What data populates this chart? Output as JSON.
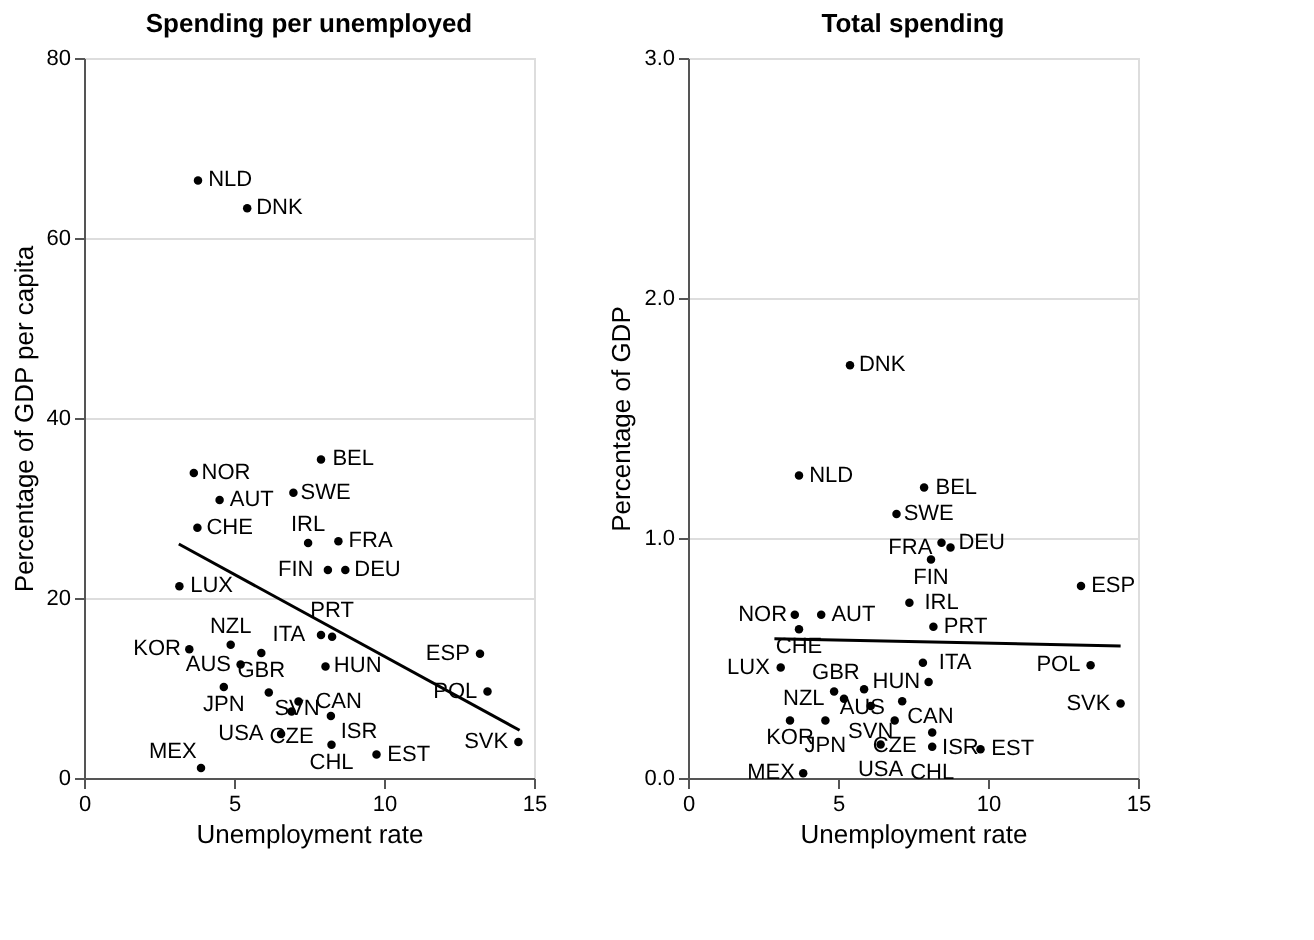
{
  "chart_data": [
    {
      "type": "scatter",
      "title": "Spending per unemployed",
      "xlabel": "Unemployment rate",
      "ylabel": "Percentage of GDP per capita",
      "xlim": [
        0,
        15
      ],
      "xticks": [
        0,
        5,
        10,
        15
      ],
      "ylim": [
        0,
        80
      ],
      "yticks": [
        0,
        20,
        40,
        60,
        80
      ],
      "grid": "y",
      "marker": "circle",
      "series": [
        {
          "color": "#000000",
          "x": [
            3.8,
            5.44,
            3.66,
            7.9,
            4.52,
            6.98,
            3.78,
            7.47,
            8.48,
            8.13,
            8.71,
            3.18,
            7.9,
            8.27,
            4.89,
            3.51,
            5.91,
            13.2,
            5.22,
            8.05,
            4.66,
            6.16,
            13.45,
            7.15,
            6.92,
            8.23,
            6.57,
            14.48,
            8.25,
            9.75,
            3.9
          ],
          "values": [
            66.4,
            63.3,
            33.9,
            35.4,
            30.9,
            31.7,
            27.8,
            26.1,
            26.3,
            23.1,
            23.1,
            21.3,
            15.9,
            15.7,
            14.8,
            14.3,
            13.9,
            13.8,
            12.6,
            12.4,
            10.1,
            9.5,
            9.6,
            8.5,
            7.4,
            6.9,
            4.9,
            4.0,
            3.7,
            2.6,
            1.1
          ]
        },
        {
          "type": "line",
          "color": "#000000",
          "marker": "none",
          "x": [
            3.16,
            14.52
          ],
          "values": [
            26.0,
            5.3
          ]
        }
      ],
      "annotations": [
        {
          "text": "NLD",
          "x": 3.8,
          "y": 66.4
        },
        {
          "text": "DNK",
          "x": 5.44,
          "y": 63.3
        },
        {
          "text": "NOR",
          "x": 3.66,
          "y": 33.9
        },
        {
          "text": "BEL",
          "x": 7.9,
          "y": 35.4
        },
        {
          "text": "AUT",
          "x": 4.52,
          "y": 30.9
        },
        {
          "text": "SWE",
          "x": 6.98,
          "y": 31.7
        },
        {
          "text": "CHE",
          "x": 3.78,
          "y": 27.8
        },
        {
          "text": "IRL",
          "x": 7.47,
          "y": 26.1
        },
        {
          "text": "FRA",
          "x": 8.48,
          "y": 26.3
        },
        {
          "text": "FIN",
          "x": 8.13,
          "y": 23.1
        },
        {
          "text": "DEU",
          "x": 8.71,
          "y": 23.1
        },
        {
          "text": "LUX",
          "x": 3.18,
          "y": 21.3
        },
        {
          "text": "ITA",
          "x": 7.9,
          "y": 15.9
        },
        {
          "text": "PRT",
          "x": 8.27,
          "y": 15.7
        },
        {
          "text": "NZL",
          "x": 4.89,
          "y": 14.8
        },
        {
          "text": "KOR",
          "x": 3.51,
          "y": 14.3
        },
        {
          "text": "GBR",
          "x": 5.91,
          "y": 13.9
        },
        {
          "text": "ESP",
          "x": 13.2,
          "y": 13.8
        },
        {
          "text": "AUS",
          "x": 5.22,
          "y": 12.6
        },
        {
          "text": "HUN",
          "x": 8.05,
          "y": 12.4
        },
        {
          "text": "JPN",
          "x": 4.66,
          "y": 10.1
        },
        {
          "text": "SVN",
          "x": 6.16,
          "y": 9.5
        },
        {
          "text": "POL",
          "x": 13.45,
          "y": 9.6
        },
        {
          "text": "CAN",
          "x": 7.15,
          "y": 8.5
        },
        {
          "text": "CZE",
          "x": 6.92,
          "y": 7.4
        },
        {
          "text": "ISR",
          "x": 8.23,
          "y": 6.9
        },
        {
          "text": "USA",
          "x": 6.57,
          "y": 4.9
        },
        {
          "text": "SVK",
          "x": 14.48,
          "y": 4.0
        },
        {
          "text": "CHL",
          "x": 8.25,
          "y": 3.7
        },
        {
          "text": "EST",
          "x": 9.75,
          "y": 2.6
        },
        {
          "text": "MEX",
          "x": 3.9,
          "y": 1.1
        }
      ]
    },
    {
      "type": "scatter",
      "title": "Total spending",
      "xlabel": "Unemployment rate",
      "ylabel": "Percentage of GDP",
      "xlim": [
        0,
        15
      ],
      "xticks": [
        0,
        5,
        10,
        15
      ],
      "ylim": [
        0,
        3
      ],
      "yticks": [
        {
          "value": 0,
          "label": "0.0"
        },
        {
          "value": 1,
          "label": "1.0"
        },
        {
          "value": 2,
          "label": "2.0"
        },
        {
          "value": 3,
          "label": "3.0"
        }
      ],
      "grid": "y",
      "marker": "circle",
      "series": [
        {
          "color": "#000000",
          "x": [
            5.4,
            3.7,
            7.87,
            6.95,
            8.45,
            8.75,
            8.1,
            13.1,
            7.38,
            4.44,
            3.56,
            3.7,
            8.18,
            7.83,
            13.42,
            3.09,
            8.02,
            5.87,
            5.2,
            4.87,
            7.14,
            14.42,
            6.09,
            3.4,
            4.58,
            6.89,
            8.14,
            6.42,
            8.14,
            9.75,
            3.84
          ],
          "values": [
            1.72,
            1.26,
            1.21,
            1.1,
            0.98,
            0.96,
            0.91,
            0.8,
            0.73,
            0.68,
            0.68,
            0.62,
            0.63,
            0.48,
            0.47,
            0.46,
            0.4,
            0.37,
            0.33,
            0.36,
            0.32,
            0.31,
            0.3,
            0.24,
            0.24,
            0.24,
            0.19,
            0.14,
            0.13,
            0.12,
            0.02
          ]
        },
        {
          "type": "line",
          "color": "#000000",
          "marker": "none",
          "x": [
            2.88,
            14.42
          ],
          "values": [
            0.58,
            0.55
          ]
        }
      ],
      "annotations": [
        {
          "text": "DNK",
          "x": 5.4,
          "y": 1.72
        },
        {
          "text": "NLD",
          "x": 3.7,
          "y": 1.26
        },
        {
          "text": "BEL",
          "x": 7.87,
          "y": 1.21
        },
        {
          "text": "SWE",
          "x": 6.95,
          "y": 1.1
        },
        {
          "text": "DEU",
          "x": 8.45,
          "y": 0.98
        },
        {
          "text": "FRA",
          "x": 8.75,
          "y": 0.96
        },
        {
          "text": "FIN",
          "x": 8.1,
          "y": 0.91
        },
        {
          "text": "ESP",
          "x": 13.1,
          "y": 0.8
        },
        {
          "text": "IRL",
          "x": 7.38,
          "y": 0.73
        },
        {
          "text": "AUT",
          "x": 4.44,
          "y": 0.68
        },
        {
          "text": "NOR",
          "x": 3.56,
          "y": 0.68
        },
        {
          "text": "CHE",
          "x": 3.7,
          "y": 0.62
        },
        {
          "text": "PRT",
          "x": 8.18,
          "y": 0.63
        },
        {
          "text": "ITA",
          "x": 7.83,
          "y": 0.48
        },
        {
          "text": "POL",
          "x": 13.42,
          "y": 0.47
        },
        {
          "text": "LUX",
          "x": 3.09,
          "y": 0.46
        },
        {
          "text": "HUN",
          "x": 8.02,
          "y": 0.4
        },
        {
          "text": "GBR",
          "x": 5.87,
          "y": 0.37
        },
        {
          "text": "NZL",
          "x": 5.2,
          "y": 0.33
        },
        {
          "text": "AUS",
          "x": 4.87,
          "y": 0.36
        },
        {
          "text": "CAN",
          "x": 7.14,
          "y": 0.32
        },
        {
          "text": "SVK",
          "x": 14.42,
          "y": 0.31
        },
        {
          "text": "SVN",
          "x": 6.09,
          "y": 0.3
        },
        {
          "text": "KOR",
          "x": 3.4,
          "y": 0.24
        },
        {
          "text": "JPN",
          "x": 4.58,
          "y": 0.24
        },
        {
          "text": "CZE",
          "x": 6.89,
          "y": 0.24
        },
        {
          "text": "ISR",
          "x": 8.14,
          "y": 0.19
        },
        {
          "text": "USA",
          "x": 6.42,
          "y": 0.14
        },
        {
          "text": "CHL",
          "x": 8.14,
          "y": 0.13
        },
        {
          "text": "EST",
          "x": 9.75,
          "y": 0.12
        },
        {
          "text": "MEX",
          "x": 3.84,
          "y": 0.02
        }
      ]
    }
  ]
}
